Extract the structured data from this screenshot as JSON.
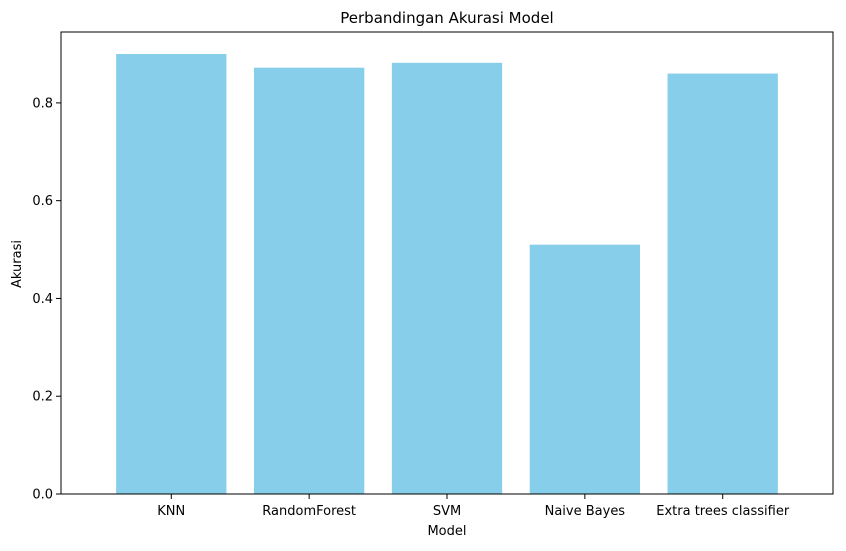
{
  "chart_data": {
    "type": "bar",
    "title": "Perbandingan Akurasi Model",
    "xlabel": "Model",
    "ylabel": "Akurasi",
    "categories": [
      "KNN",
      "RandomForest",
      "SVM",
      "Naive Bayes",
      "Extra trees classifier"
    ],
    "values": [
      0.9,
      0.872,
      0.882,
      0.51,
      0.86
    ],
    "ylim": [
      0,
      0.945
    ],
    "yticks": [
      "0.0",
      "0.2",
      "0.4",
      "0.6",
      "0.8"
    ],
    "grid": false,
    "bar_color": "#87ceeb"
  }
}
